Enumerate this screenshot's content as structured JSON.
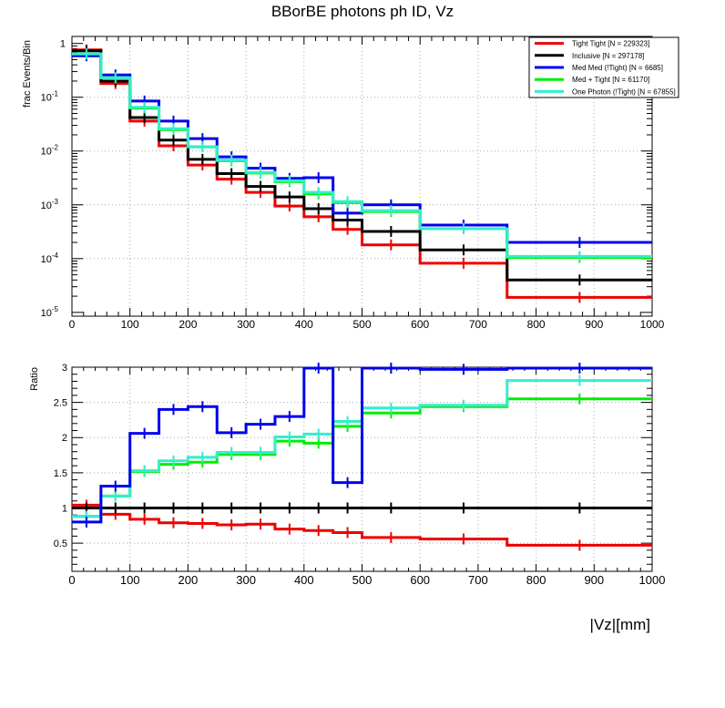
{
  "title": "BBorBE photons ph ID, Vz",
  "colors": {
    "tight_tight": "#ee0000",
    "inclusive": "#000000",
    "med_med": "#0000ee",
    "med_tight": "#00ee00",
    "one_photon": "#33eecc"
  },
  "chart_data": [
    {
      "type": "line",
      "subtype": "step-histogram",
      "ylabel": "frac Events/Bin",
      "xlabel": "",
      "yscale": "log",
      "ylim": [
        8.5e-06,
        1.35
      ],
      "xlim": [
        0,
        1000
      ],
      "grid": true,
      "legend_position": "top-right",
      "bin_edges": [
        0,
        50,
        100,
        150,
        200,
        250,
        300,
        350,
        400,
        450,
        500,
        600,
        750,
        1000
      ],
      "x_ticks": [
        "0",
        "100",
        "200",
        "300",
        "400",
        "500",
        "600",
        "700",
        "800",
        "900",
        "1000"
      ],
      "y_ticks": [
        {
          "base": "10",
          "exp": "-5"
        },
        {
          "base": "10",
          "exp": "-4"
        },
        {
          "base": "10",
          "exp": "-3"
        },
        {
          "base": "10",
          "exp": "-2"
        },
        {
          "base": "10",
          "exp": "-1"
        },
        {
          "base": "1",
          "exp": ""
        }
      ],
      "series": [
        {
          "name": "Tight Tight [N = 229323]",
          "color_key": "tight_tight",
          "values": [
            0.76,
            0.18,
            0.036,
            0.0125,
            0.0055,
            0.003,
            0.0017,
            0.00095,
            0.0006,
            0.00035,
            0.00018,
            8.2e-05,
            1.9e-05
          ]
        },
        {
          "name": "Inclusive [N = 297178]",
          "color_key": "inclusive",
          "values": [
            0.73,
            0.2,
            0.042,
            0.016,
            0.007,
            0.0038,
            0.0022,
            0.0014,
            0.00085,
            0.00052,
            0.00032,
            0.000145,
            4e-05
          ]
        },
        {
          "name": "Med Med (!Tight) [N = 6685]",
          "color_key": "med_med",
          "values": [
            0.59,
            0.26,
            0.085,
            0.036,
            0.017,
            0.0078,
            0.0048,
            0.0031,
            0.0032,
            0.0007,
            0.001,
            0.00042,
            0.0002
          ]
        },
        {
          "name": "Med + Tight [N = 61170]",
          "color_key": "med_tight",
          "values": [
            0.64,
            0.23,
            0.063,
            0.025,
            0.012,
            0.0066,
            0.0039,
            0.0027,
            0.0016,
            0.0011,
            0.00075,
            0.00036,
            0.000105
          ]
        },
        {
          "name": "One Photon (!Tight) [N = 67855]",
          "color_key": "one_photon",
          "values": [
            0.64,
            0.23,
            0.065,
            0.026,
            0.012,
            0.0068,
            0.004,
            0.0028,
            0.0017,
            0.00115,
            0.00078,
            0.00036,
            0.00011
          ]
        }
      ]
    },
    {
      "type": "line",
      "subtype": "step-histogram",
      "ylabel": "Ratio",
      "xlabel": "|Vz|[mm]",
      "ylim": [
        0.1,
        3.0
      ],
      "xlim": [
        0,
        1000
      ],
      "grid": true,
      "bin_edges": [
        0,
        50,
        100,
        150,
        200,
        250,
        300,
        350,
        400,
        450,
        500,
        600,
        750,
        1000
      ],
      "x_ticks": [
        "0",
        "100",
        "200",
        "300",
        "400",
        "500",
        "600",
        "700",
        "800",
        "900",
        "1000"
      ],
      "y_ticks": [
        "0.5",
        "1",
        "1.5",
        "2",
        "2.5",
        "3"
      ],
      "series": [
        {
          "name": "Tight Tight",
          "color_key": "tight_tight",
          "values": [
            1.04,
            0.91,
            0.84,
            0.79,
            0.78,
            0.76,
            0.77,
            0.7,
            0.68,
            0.65,
            0.58,
            0.56,
            0.47
          ]
        },
        {
          "name": "Inclusive",
          "color_key": "inclusive",
          "values": [
            1,
            1,
            1,
            1,
            1,
            1,
            1,
            1,
            1,
            1,
            1,
            1,
            1
          ]
        },
        {
          "name": "Med Med (!Tight)",
          "color_key": "med_med",
          "values": [
            0.8,
            1.31,
            2.06,
            2.4,
            2.44,
            2.07,
            2.19,
            2.3,
            3.0,
            1.36,
            3.0,
            2.97,
            3.0
          ]
        },
        {
          "name": "Med + Tight",
          "color_key": "med_tight",
          "values": [
            0.88,
            1.17,
            1.52,
            1.62,
            1.65,
            1.76,
            1.76,
            1.95,
            1.92,
            2.16,
            2.35,
            2.44,
            2.55
          ]
        },
        {
          "name": "One Photon (!Tight)",
          "color_key": "one_photon",
          "values": [
            0.88,
            1.17,
            1.53,
            1.67,
            1.72,
            1.79,
            1.79,
            2.01,
            2.05,
            2.23,
            2.42,
            2.46,
            2.81
          ]
        }
      ]
    }
  ]
}
